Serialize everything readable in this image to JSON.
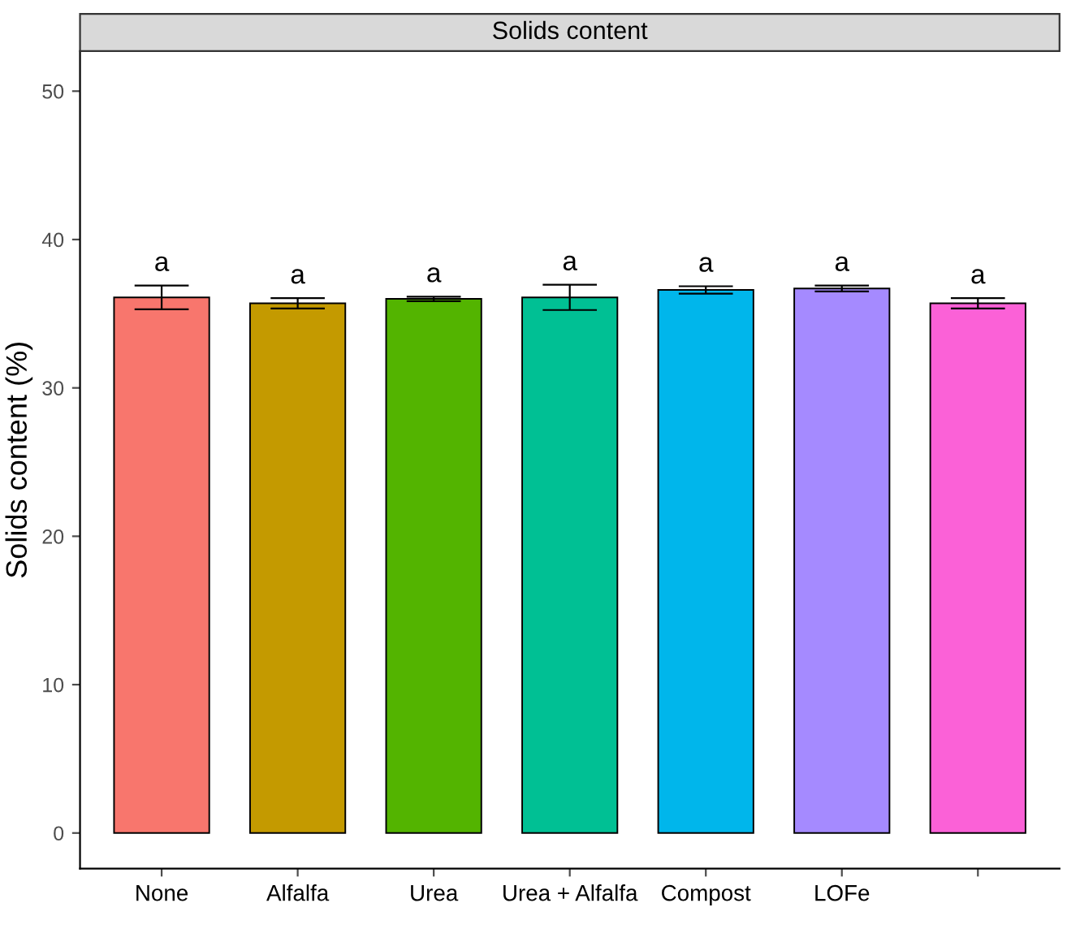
{
  "chart_data": {
    "type": "bar",
    "title": "Solids content",
    "ylabel": "Solids content (%)",
    "categories": [
      "None",
      "Alfalfa",
      "Urea",
      "Urea + Alfalfa",
      "Compost",
      "LOFe",
      null
    ],
    "values": [
      36.1,
      35.7,
      36.0,
      36.1,
      36.6,
      36.7,
      35.7
    ],
    "errors": [
      0.8,
      0.35,
      0.15,
      0.85,
      0.25,
      0.2,
      0.35
    ],
    "colors": [
      "#f8766d",
      "#c49a00",
      "#53b400",
      "#00c094",
      "#00b6eb",
      "#a58aff",
      "#fb61d7"
    ],
    "ylim": [
      -2.4,
      52.7
    ],
    "yticks": [
      0,
      10,
      20,
      30,
      40,
      50
    ],
    "grid": false,
    "legend": false,
    "annotations": [
      "a",
      "a",
      "a",
      "a",
      "a",
      "a",
      "a"
    ]
  }
}
